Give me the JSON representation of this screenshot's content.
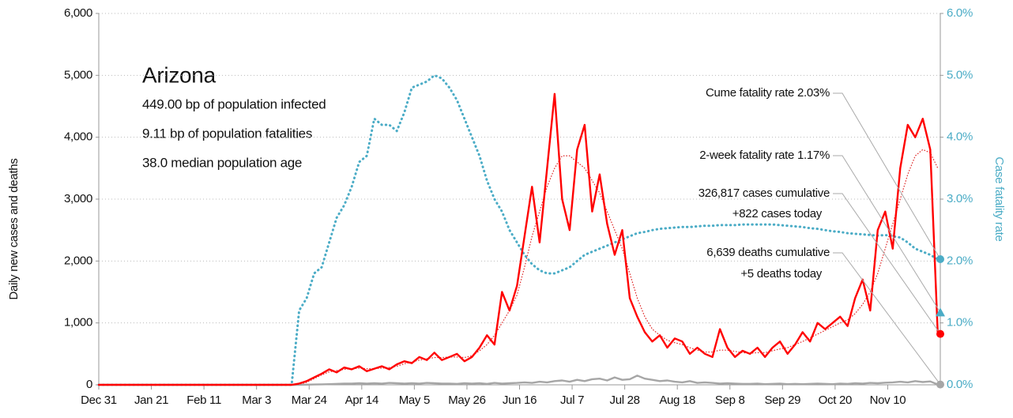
{
  "chart_data": {
    "type": "line",
    "title": "Arizona",
    "info": [
      "449.00 bp of population infected",
      "9.11 bp of population fatalities",
      "38.0 median population age"
    ],
    "ylabel": "Daily new cases and deaths",
    "y2label": "Case fatality rate",
    "xlim": [
      0,
      336
    ],
    "xticks": [
      {
        "value": 0,
        "label": "Dec 31"
      },
      {
        "value": 21,
        "label": "Jan 21"
      },
      {
        "value": 42,
        "label": "Feb 11"
      },
      {
        "value": 63,
        "label": "Mar 3"
      },
      {
        "value": 84,
        "label": "Mar 24"
      },
      {
        "value": 105,
        "label": "Apr 14"
      },
      {
        "value": 126,
        "label": "May 5"
      },
      {
        "value": 147,
        "label": "May 26"
      },
      {
        "value": 168,
        "label": "Jun 16"
      },
      {
        "value": 189,
        "label": "Jul 7"
      },
      {
        "value": 210,
        "label": "Jul 28"
      },
      {
        "value": 231,
        "label": "Aug 18"
      },
      {
        "value": 252,
        "label": "Sep 8"
      },
      {
        "value": 273,
        "label": "Sep 29"
      },
      {
        "value": 294,
        "label": "Oct 20"
      },
      {
        "value": 315,
        "label": "Nov 10"
      }
    ],
    "ylim": [
      0,
      6000
    ],
    "yticks": [
      0,
      {
        "value": 1000,
        "label": "1,000"
      },
      {
        "value": 2000,
        "label": "2,000"
      },
      {
        "value": 3000,
        "label": "3,000"
      },
      {
        "value": 4000,
        "label": "4,000"
      },
      {
        "value": 5000,
        "label": "5,000"
      },
      {
        "value": 6000,
        "label": "6,000"
      }
    ],
    "y2lim": [
      0,
      6
    ],
    "y2ticks": [
      {
        "value": 0,
        "label": "0.0%"
      },
      {
        "value": 1,
        "label": "1.0%"
      },
      {
        "value": 2,
        "label": "2.0%"
      },
      {
        "value": 3,
        "label": "3.0%"
      },
      {
        "value": 4,
        "label": "4.0%"
      },
      {
        "value": 5,
        "label": "5.0%"
      },
      {
        "value": 6,
        "label": "6.0%"
      }
    ],
    "grid": true,
    "x": [
      0,
      7,
      14,
      21,
      28,
      35,
      42,
      49,
      56,
      63,
      70,
      77,
      80,
      83,
      86,
      89,
      92,
      95,
      98,
      101,
      104,
      107,
      110,
      113,
      116,
      119,
      122,
      125,
      128,
      131,
      134,
      137,
      140,
      143,
      146,
      149,
      152,
      155,
      158,
      161,
      164,
      167,
      170,
      173,
      176,
      179,
      182,
      185,
      188,
      191,
      194,
      197,
      200,
      203,
      206,
      209,
      212,
      215,
      218,
      221,
      224,
      227,
      230,
      233,
      236,
      239,
      242,
      245,
      248,
      251,
      254,
      257,
      260,
      263,
      266,
      269,
      272,
      275,
      278,
      281,
      284,
      287,
      290,
      293,
      296,
      299,
      302,
      305,
      308,
      311,
      314,
      317,
      320,
      323,
      326,
      329,
      332,
      335
    ],
    "series": [
      {
        "color": "#4bacc6",
        "dotted": true,
        "axis": "y2",
        "values": [
          0,
          0,
          0,
          0,
          0,
          0,
          0,
          0,
          0,
          0,
          0,
          0,
          1.2,
          1.4,
          1.8,
          1.9,
          2.3,
          2.7,
          2.9,
          3.2,
          3.6,
          3.7,
          4.3,
          4.2,
          4.2,
          4.1,
          4.4,
          4.8,
          4.85,
          4.9,
          5.0,
          4.95,
          4.8,
          4.6,
          4.3,
          4.0,
          3.7,
          3.3,
          3.0,
          2.8,
          2.5,
          2.3,
          2.1,
          1.95,
          1.85,
          1.8,
          1.8,
          1.85,
          1.9,
          2.0,
          2.1,
          2.15,
          2.2,
          2.25,
          2.3,
          2.35,
          2.4,
          2.45,
          2.47,
          2.5,
          2.52,
          2.53,
          2.54,
          2.55,
          2.55,
          2.56,
          2.57,
          2.57,
          2.58,
          2.58,
          2.58,
          2.59,
          2.59,
          2.59,
          2.59,
          2.59,
          2.58,
          2.57,
          2.56,
          2.55,
          2.53,
          2.52,
          2.5,
          2.48,
          2.47,
          2.45,
          2.44,
          2.43,
          2.42,
          2.41,
          2.42,
          2.4,
          2.38,
          2.3,
          2.2,
          2.15,
          2.1,
          2.03
        ]
      },
      {
        "color": "#a6a6a6",
        "dotted": false,
        "values": [
          0,
          0,
          0,
          0,
          0,
          0,
          0,
          0,
          0,
          0,
          0,
          0,
          0,
          2,
          5,
          8,
          10,
          15,
          20,
          20,
          25,
          20,
          25,
          20,
          30,
          25,
          20,
          25,
          20,
          30,
          25,
          20,
          20,
          15,
          25,
          20,
          25,
          15,
          30,
          20,
          25,
          30,
          40,
          30,
          50,
          40,
          60,
          70,
          50,
          80,
          60,
          90,
          100,
          70,
          120,
          80,
          90,
          150,
          100,
          80,
          60,
          70,
          50,
          40,
          60,
          30,
          40,
          30,
          20,
          25,
          20,
          15,
          15,
          20,
          10,
          15,
          20,
          10,
          15,
          10,
          15,
          20,
          15,
          10,
          20,
          15,
          25,
          20,
          30,
          25,
          35,
          40,
          50,
          40,
          60,
          45,
          55,
          5
        ]
      },
      {
        "color": "#e03030",
        "dotted": true,
        "values": [
          0,
          0,
          0,
          0,
          0,
          0,
          0,
          0,
          0,
          0,
          0,
          0,
          10,
          40,
          100,
          160,
          210,
          230,
          250,
          260,
          270,
          260,
          260,
          270,
          280,
          300,
          340,
          370,
          400,
          420,
          440,
          440,
          450,
          450,
          440,
          470,
          550,
          650,
          800,
          1000,
          1200,
          1450,
          1900,
          2400,
          2800,
          3200,
          3500,
          3700,
          3700,
          3600,
          3500,
          3300,
          3100,
          2800,
          2500,
          2200,
          1800,
          1400,
          1100,
          900,
          800,
          720,
          680,
          650,
          600,
          560,
          530,
          530,
          560,
          560,
          540,
          520,
          510,
          520,
          520,
          550,
          580,
          600,
          650,
          700,
          760,
          820,
          880,
          940,
          1000,
          1050,
          1150,
          1300,
          1500,
          1800,
          2200,
          2600,
          3000,
          3400,
          3700,
          3800,
          3750,
          3500
        ]
      },
      {
        "color": "#ff0000",
        "dotted": false,
        "values": [
          0,
          0,
          0,
          0,
          0,
          0,
          0,
          0,
          0,
          0,
          0,
          0,
          20,
          60,
          120,
          180,
          250,
          200,
          280,
          250,
          300,
          220,
          260,
          300,
          250,
          330,
          380,
          350,
          450,
          400,
          520,
          400,
          450,
          500,
          380,
          450,
          600,
          800,
          650,
          1500,
          1200,
          1600,
          2400,
          3200,
          2300,
          3500,
          4700,
          3000,
          2500,
          3800,
          4200,
          2800,
          3400,
          2600,
          2100,
          2500,
          1400,
          1100,
          850,
          700,
          800,
          600,
          750,
          700,
          500,
          600,
          500,
          450,
          900,
          600,
          450,
          550,
          500,
          600,
          450,
          600,
          700,
          500,
          650,
          850,
          700,
          1000,
          900,
          1000,
          1100,
          950,
          1400,
          1700,
          1200,
          2500,
          2800,
          2200,
          3500,
          4200,
          4000,
          4300,
          3800,
          822
        ]
      }
    ],
    "end_markers": [
      {
        "value": 2.03,
        "axis": "y2",
        "color": "#4bacc6",
        "shape": "circle",
        "label": [
          "Cume fatality rate 2.03%"
        ]
      },
      {
        "value": 1.17,
        "axis": "y2",
        "color": "#4bacc6",
        "shape": "triangle",
        "label": [
          "2-week fatality rate 1.17%"
        ]
      },
      {
        "value": 822,
        "color": "#ff0000",
        "shape": "circle",
        "label": [
          "326,817 cases cumulative",
          "+822 cases today"
        ]
      },
      {
        "value": 5,
        "color": "#a6a6a6",
        "shape": "circle",
        "label": [
          "6,639 deaths cumulative",
          "+5 deaths today"
        ]
      }
    ]
  }
}
